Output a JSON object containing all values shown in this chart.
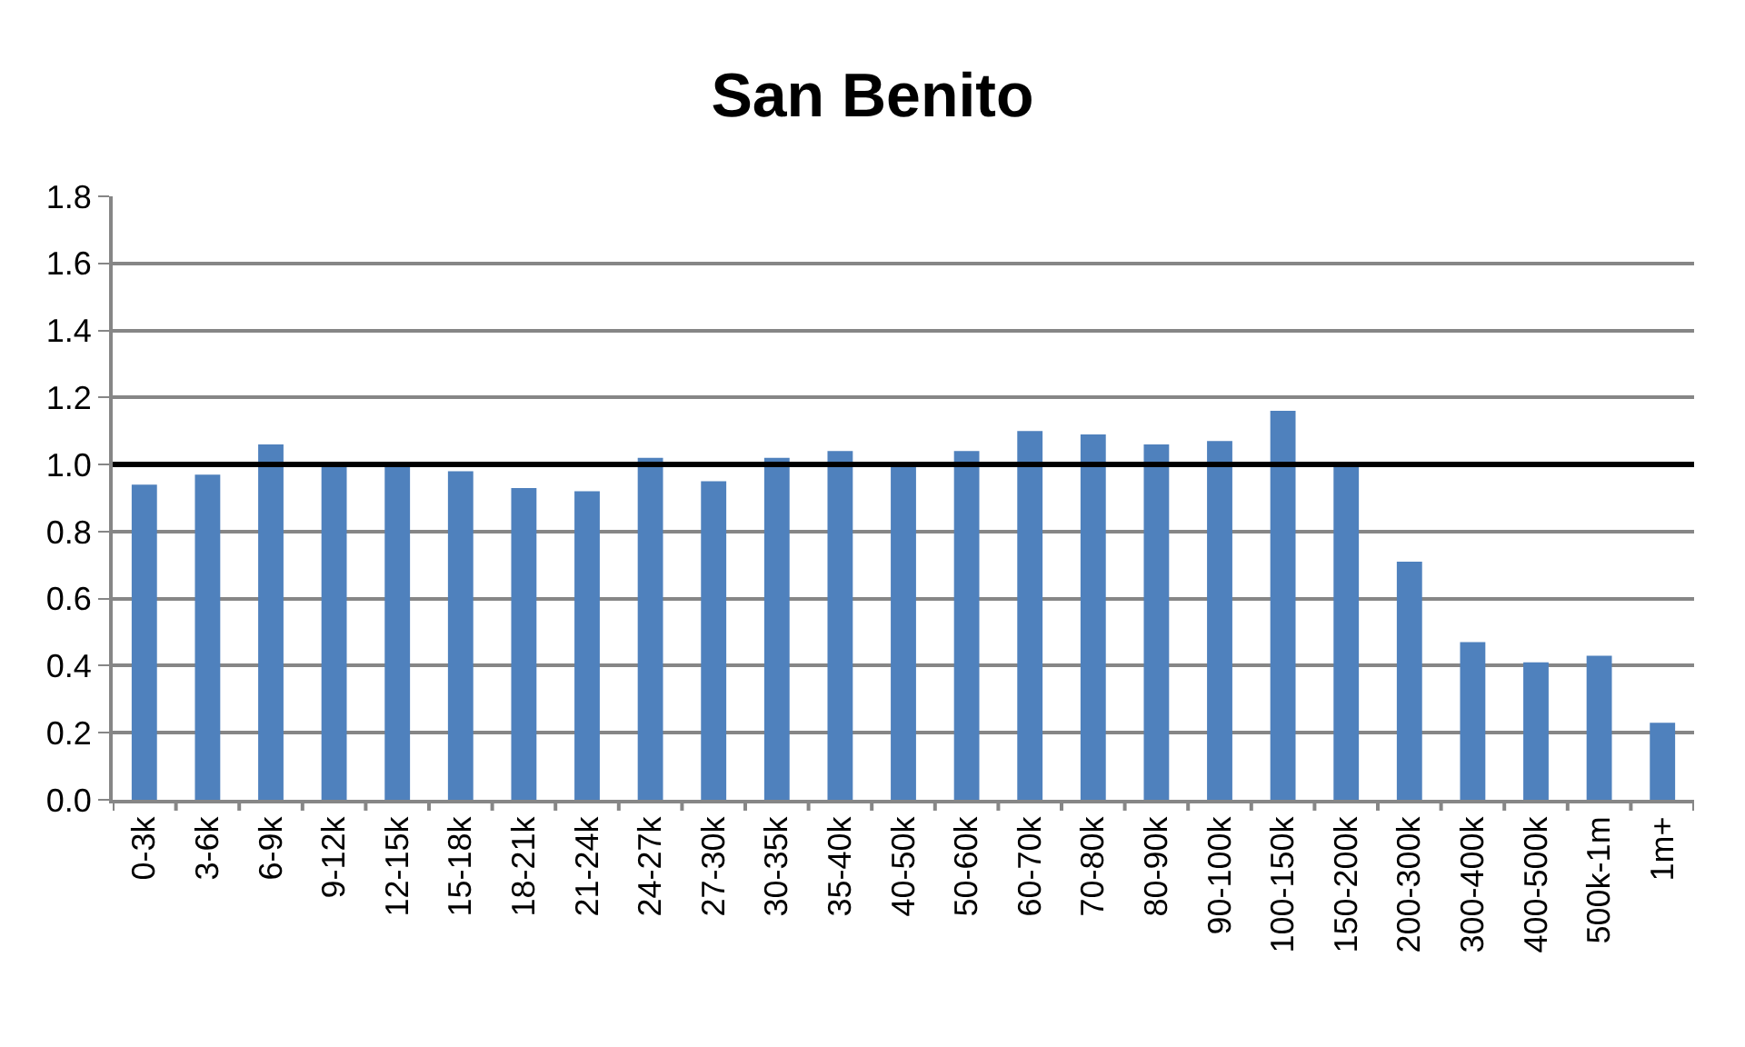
{
  "chart_data": {
    "type": "bar",
    "title": "San Benito",
    "categories": [
      "0-3k",
      "3-6k",
      "6-9k",
      "9-12k",
      "12-15k",
      "15-18k",
      "18-21k",
      "21-24k",
      "24-27k",
      "27-30k",
      "30-35k",
      "35-40k",
      "40-50k",
      "50-60k",
      "60-70k",
      "70-80k",
      "80-90k",
      "90-100k",
      "100-150k",
      "150-200k",
      "200-300k",
      "300-400k",
      "400-500k",
      "500k-1m",
      "1m+"
    ],
    "values": [
      0.94,
      0.97,
      1.06,
      1.0,
      1.0,
      0.98,
      0.93,
      0.92,
      1.02,
      0.95,
      1.02,
      1.04,
      1.0,
      1.04,
      1.1,
      1.09,
      1.06,
      1.07,
      1.16,
      1.0,
      0.71,
      0.47,
      0.41,
      0.43,
      0.23
    ],
    "color": "#4f81bd",
    "ylim": [
      0,
      1.8
    ],
    "yticks": [
      {
        "value": 0,
        "label": "0.0"
      },
      0.2,
      0.4,
      0.6,
      0.8,
      {
        "value": 1,
        "label": "1.0"
      },
      1.2,
      1.4,
      1.6,
      1.8
    ],
    "grid": "y",
    "ref_lines": [
      {
        "axis": "y",
        "value": 1.0,
        "color": "#000000"
      }
    ]
  }
}
